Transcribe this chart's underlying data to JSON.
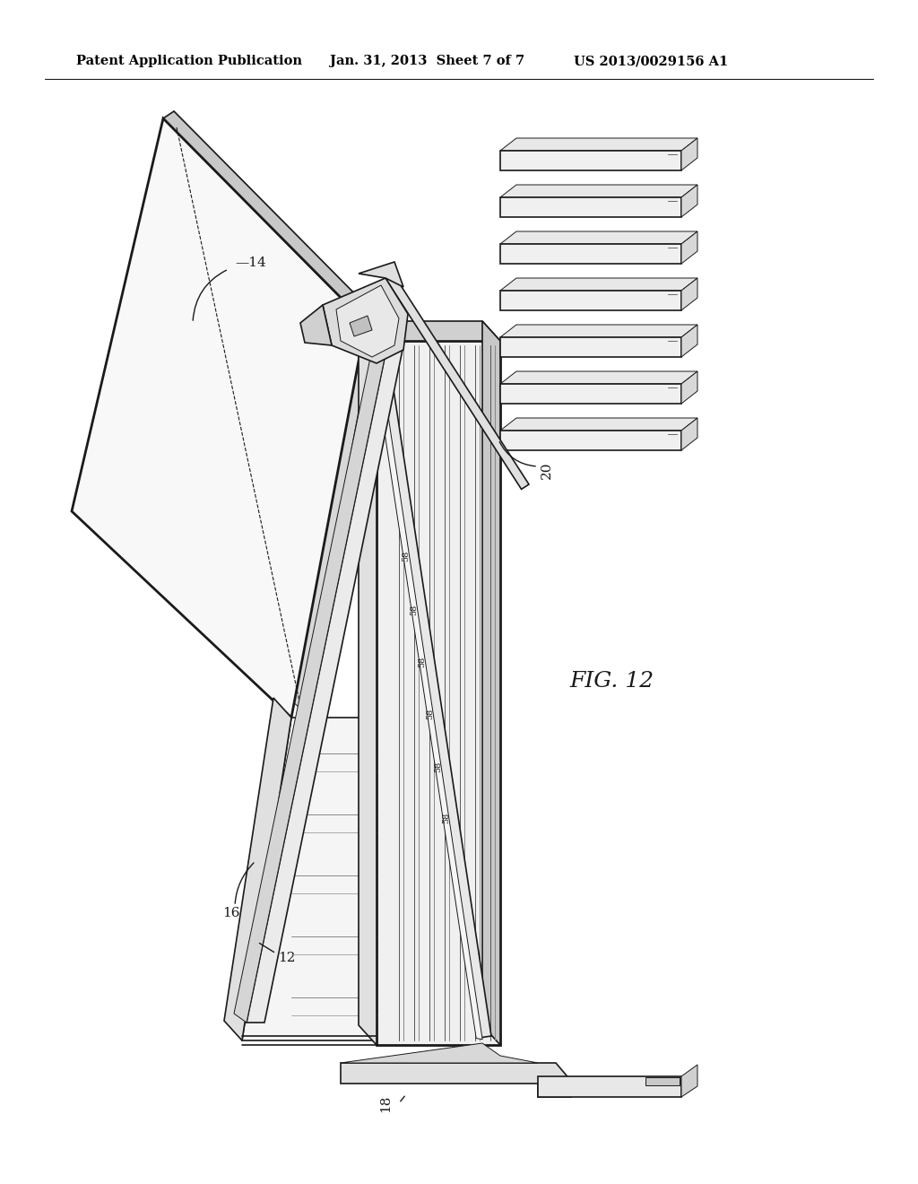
{
  "title_left": "Patent Application Publication",
  "title_center": "Jan. 31, 2013  Sheet 7 of 7",
  "title_right": "US 2013/0029156 A1",
  "fig_label": "FIG. 12",
  "background_color": "#ffffff",
  "line_color": "#1a1a1a",
  "header_fontsize": 10.5,
  "label_fontsize": 11,
  "fig_label_fontsize": 18
}
